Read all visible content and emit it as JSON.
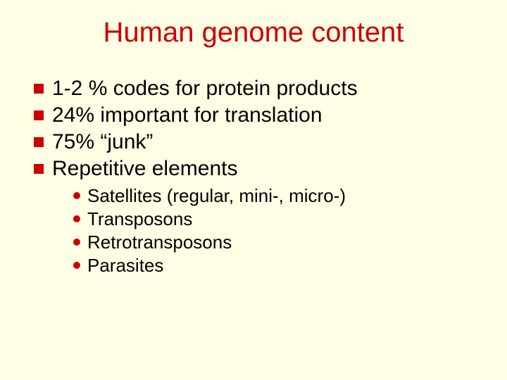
{
  "slide": {
    "background_color": "#ffffe6",
    "title": {
      "text": "Human genome content",
      "color": "#cc0000",
      "fontsize": 40
    },
    "bullets": {
      "square_color": "#cc0000",
      "square_size": 14,
      "text_color": "#000000",
      "fontsize": 30,
      "items": [
        "1-2 % codes for protein products",
        "24% important for translation",
        "75% “junk”",
        "Repetitive elements"
      ]
    },
    "sub_bullets": {
      "dot_color": "#cc0000",
      "dot_size": 10,
      "text_color": "#000000",
      "fontsize": 26,
      "items": [
        "Satellites (regular, mini-, micro-)",
        "Transposons",
        "Retrotransposons",
        "Parasites"
      ]
    }
  }
}
